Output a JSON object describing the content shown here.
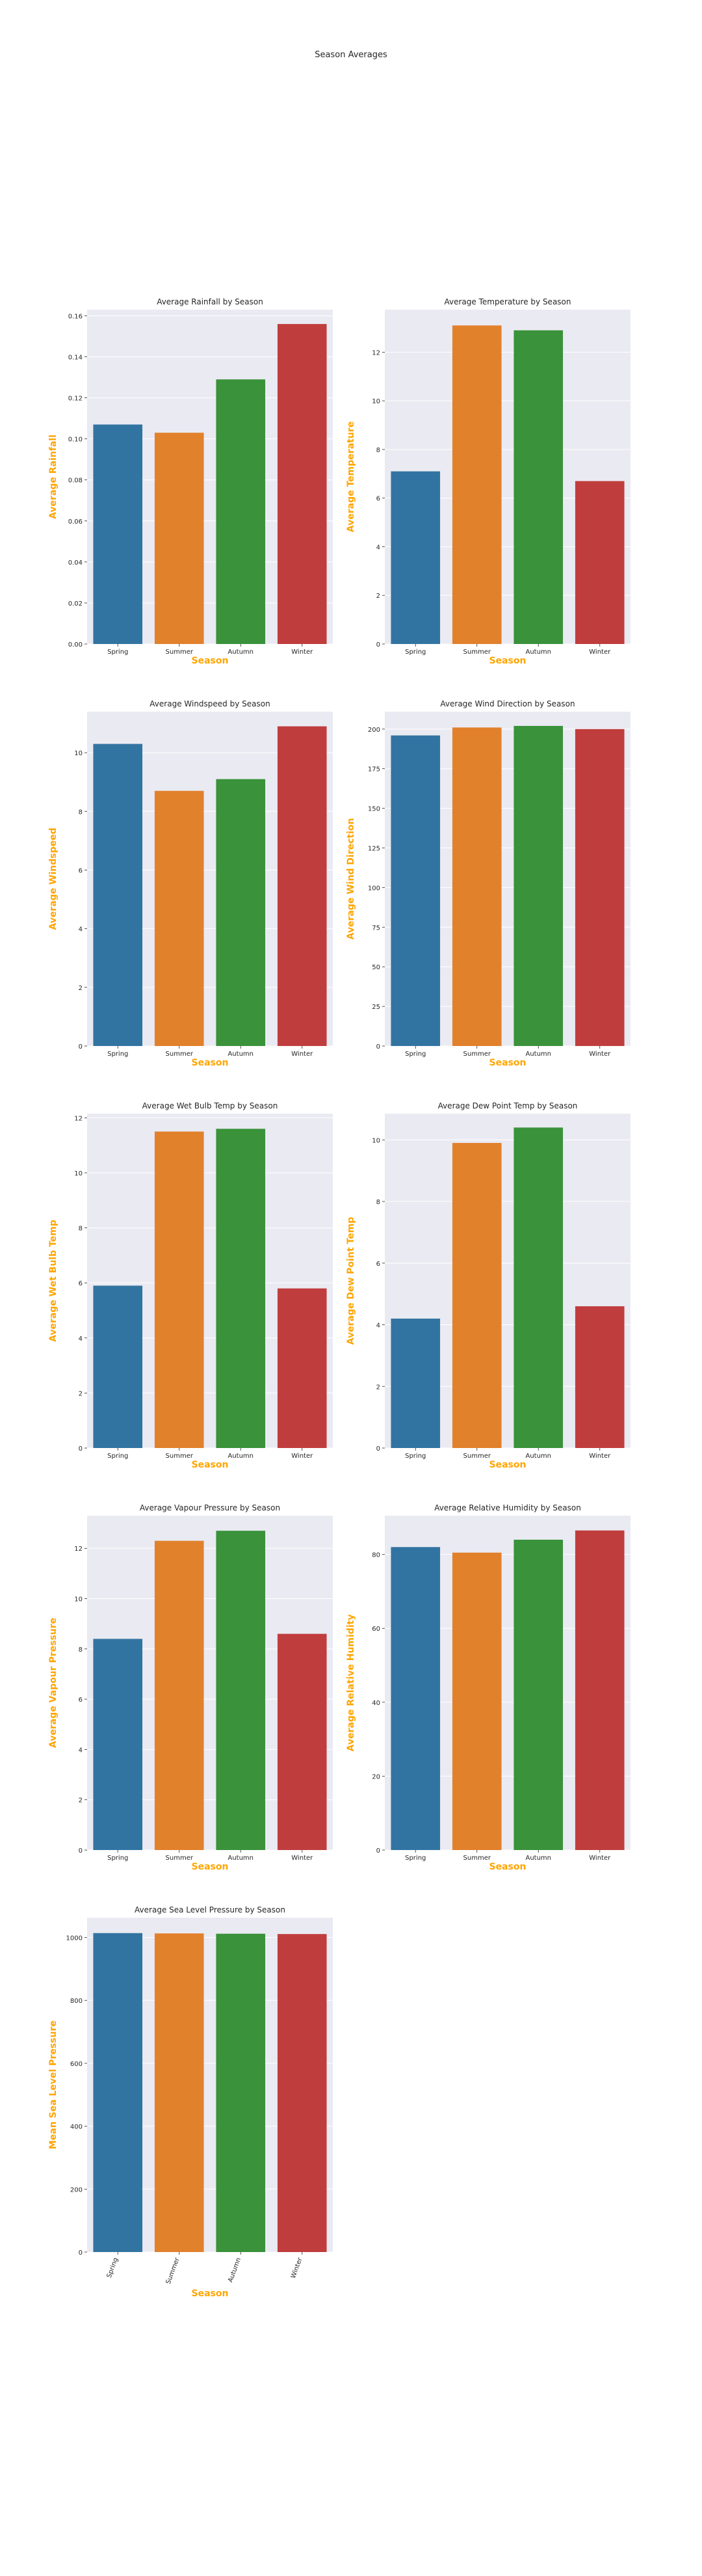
{
  "suptitle": "Season Averages",
  "colors": {
    "spring": "#3274a1",
    "summer": "#e1812c",
    "autumn": "#3a923a",
    "winter": "#c03d3e",
    "plot_background": "#eaeaf2",
    "grid": "#ffffff",
    "axis_label": "#ffa500",
    "text": "#262626"
  },
  "chart_data": [
    {
      "type": "bar",
      "title": "Average Rainfall by Season",
      "xlabel": "Season",
      "ylabel": "Average Rainfall",
      "categories": [
        "Spring",
        "Summer",
        "Autumn",
        "Winter"
      ],
      "values": [
        0.107,
        0.103,
        0.129,
        0.156
      ],
      "ylim": [
        0,
        0.163
      ],
      "yticks": [
        "0.00",
        "0.02",
        "0.04",
        "0.06",
        "0.08",
        "0.10",
        "0.12",
        "0.14",
        "0.16"
      ],
      "xtick_rotation": 0
    },
    {
      "type": "bar",
      "title": "Average Temperature by Season",
      "xlabel": "Season",
      "ylabel": "Average Temperature",
      "categories": [
        "Spring",
        "Summer",
        "Autumn",
        "Winter"
      ],
      "values": [
        7.1,
        13.1,
        12.9,
        6.7
      ],
      "ylim": [
        0,
        13.75
      ],
      "yticks": [
        "0",
        "2",
        "4",
        "6",
        "8",
        "10",
        "12"
      ],
      "xtick_rotation": 0
    },
    {
      "type": "bar",
      "title": "Average Windspeed by Season",
      "xlabel": "Season",
      "ylabel": "Average Windspeed",
      "categories": [
        "Spring",
        "Summer",
        "Autumn",
        "Winter"
      ],
      "values": [
        10.3,
        8.7,
        9.1,
        10.9
      ],
      "ylim": [
        0,
        11.4
      ],
      "yticks": [
        "0",
        "2",
        "4",
        "6",
        "8",
        "10"
      ],
      "xtick_rotation": 0
    },
    {
      "type": "bar",
      "title": "Average Wind Direction by Season",
      "xlabel": "Season",
      "ylabel": "Average Wind Direction",
      "categories": [
        "Spring",
        "Summer",
        "Autumn",
        "Winter"
      ],
      "values": [
        196,
        201,
        202,
        200
      ],
      "ylim": [
        0,
        211
      ],
      "yticks": [
        "0",
        "25",
        "50",
        "75",
        "100",
        "125",
        "150",
        "175",
        "200"
      ],
      "xtick_rotation": 0
    },
    {
      "type": "bar",
      "title": "Average Wet Bulb Temp by Season",
      "xlabel": "Season",
      "ylabel": "Average Wet Bulb Temp",
      "categories": [
        "Spring",
        "Summer",
        "Autumn",
        "Winter"
      ],
      "values": [
        5.9,
        11.5,
        11.6,
        5.8
      ],
      "ylim": [
        0,
        12.15
      ],
      "yticks": [
        "0",
        "2",
        "4",
        "6",
        "8",
        "10",
        "12"
      ],
      "xtick_rotation": 0
    },
    {
      "type": "bar",
      "title": "Average Dew Point Temp by Season",
      "xlabel": "Season",
      "ylabel": "Average Dew Point Temp",
      "categories": [
        "Spring",
        "Summer",
        "Autumn",
        "Winter"
      ],
      "values": [
        4.2,
        9.9,
        10.4,
        4.6
      ],
      "ylim": [
        0,
        10.85
      ],
      "yticks": [
        "0",
        "2",
        "4",
        "6",
        "8",
        "10"
      ],
      "xtick_rotation": 0
    },
    {
      "type": "bar",
      "title": "Average Vapour Pressure by Season",
      "xlabel": "Season",
      "ylabel": "Average Vapour Pressure",
      "categories": [
        "Spring",
        "Summer",
        "Autumn",
        "Winter"
      ],
      "values": [
        8.4,
        12.3,
        12.7,
        8.6
      ],
      "ylim": [
        0,
        13.3
      ],
      "yticks": [
        "0",
        "2",
        "4",
        "6",
        "8",
        "10",
        "12"
      ],
      "xtick_rotation": 0
    },
    {
      "type": "bar",
      "title": "Average Relative Humidity by Season",
      "xlabel": "Season",
      "ylabel": "Average Relative Humidity",
      "categories": [
        "Spring",
        "Summer",
        "Autumn",
        "Winter"
      ],
      "values": [
        82,
        80.5,
        84,
        86.5
      ],
      "ylim": [
        0,
        90.5
      ],
      "yticks": [
        "0",
        "20",
        "40",
        "60",
        "80"
      ],
      "xtick_rotation": 0
    },
    {
      "type": "bar",
      "title": "Average Sea Level Pressure by Season",
      "xlabel": "Season",
      "ylabel": "Mean Sea Level Pressure",
      "categories": [
        "Spring",
        "Summer",
        "Autumn",
        "Winter"
      ],
      "values": [
        1014,
        1013,
        1012,
        1011
      ],
      "ylim": [
        0,
        1063
      ],
      "yticks": [
        "0",
        "200",
        "400",
        "600",
        "800",
        "1000"
      ],
      "xtick_rotation": -70
    }
  ]
}
